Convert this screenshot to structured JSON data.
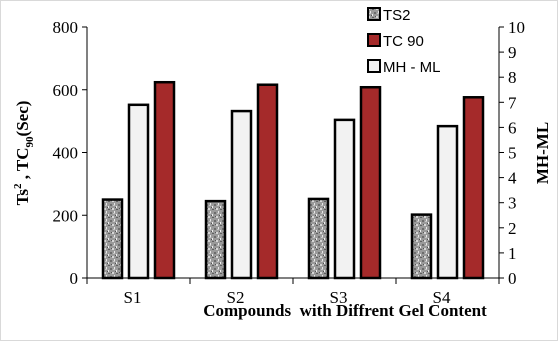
{
  "chart_data": {
    "type": "bar",
    "categories": [
      "S1",
      "S2",
      "S3",
      "S4"
    ],
    "series": [
      {
        "name": "TS2",
        "axis": "left",
        "values": [
          250,
          245,
          252,
          202
        ],
        "color": "#8c8c8c",
        "pattern": "granite"
      },
      {
        "name": "MH - ML",
        "axis": "right",
        "values": [
          6.9,
          6.65,
          6.3,
          6.05
        ],
        "color": "#f2f2f2"
      },
      {
        "name": "TC 90",
        "axis": "right",
        "values": [
          7.8,
          7.7,
          7.6,
          7.2
        ],
        "color": "#a52a2a"
      }
    ],
    "xlabel": "Compounds  with Diffrent Gel Content",
    "ylabel_left": {
      "main": "Ts",
      "sup": "2",
      "mid": " , TC",
      "sub": "90",
      "end": "(Sec)"
    },
    "ylabel_right": "MH-ML",
    "ylim_left": [
      0,
      800
    ],
    "yticks_left": [
      "0",
      "200",
      "400",
      "600",
      "800"
    ],
    "ylim_right": [
      0,
      10
    ],
    "yticks_right": [
      "0",
      "1",
      "2",
      "3",
      "4",
      "5",
      "6",
      "7",
      "8",
      "9",
      "10"
    ],
    "legend_order": [
      "TS2",
      "TC 90",
      "MH - ML"
    ],
    "legend_position": "top-right",
    "grid": false
  }
}
